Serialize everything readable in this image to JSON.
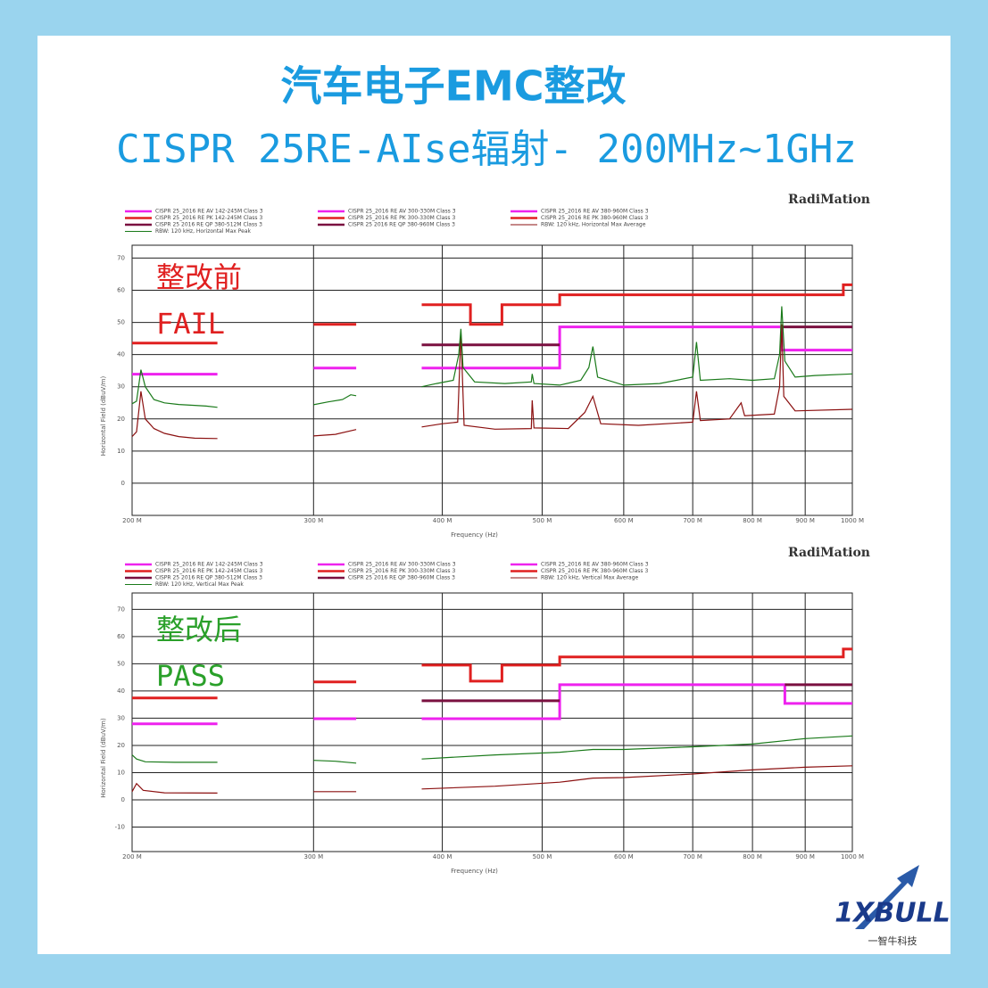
{
  "header": {
    "title": [
      "汽车电子EMC整改",
      "CISPR 25RE-AIse辐射- 200MHz~1GHz"
    ]
  },
  "logo": {
    "brand": "1XBULL",
    "subtitle": "一智牛科技"
  },
  "chart_data": [
    {
      "type": "line",
      "title": "RadiMation",
      "x_label": "Frequency (Hz)",
      "y_label": "Horizontal Field (dBuV/m)",
      "annotations": [
        {
          "text": "整改前",
          "color": "#e02020"
        },
        {
          "text": "FAIL",
          "color": "#e02020"
        }
      ],
      "xscale": "log",
      "xlim": [
        200,
        1000
      ],
      "xticks": [
        {
          "value": 200,
          "label": "200 M"
        },
        {
          "value": 300,
          "label": "300 M"
        },
        {
          "value": 400,
          "label": "400 M"
        },
        {
          "value": 500,
          "label": "500 M"
        },
        {
          "value": 600,
          "label": "600 M"
        },
        {
          "value": 700,
          "label": "700 M"
        },
        {
          "value": 800,
          "label": "800 M"
        },
        {
          "value": 900,
          "label": "900 M"
        },
        {
          "value": 1000,
          "label": "1000 M"
        }
      ],
      "ylim": [
        -10,
        74
      ],
      "yticks": [
        0,
        10,
        20,
        30,
        40,
        50,
        60,
        70
      ],
      "grid": true,
      "legend": "top",
      "series": [
        {
          "name": "CISPR 25_2016 RE AV 142-245M Class 3",
          "color": "#ee22ee",
          "x": [
            200,
            242
          ],
          "values": [
            33.9,
            33.9
          ]
        },
        {
          "name": "CISPR 25_2016 RE AV 300-330M Class 3",
          "color": "#ee22ee",
          "x": [
            300,
            330
          ],
          "values": [
            35.8,
            35.8
          ]
        },
        {
          "name": "CISPR 25_2016 RE AV 380-960M Class 3",
          "color": "#ee22ee",
          "x": [
            382,
            520,
            520,
            854,
            854,
            1000
          ],
          "values": [
            35.8,
            35.8,
            48.6,
            48.6,
            41.4,
            41.4
          ]
        },
        {
          "name": "CISPR 25_2016 RE PK 142-245M Class 3",
          "color": "#e02020",
          "x": [
            200,
            242
          ],
          "values": [
            43.6,
            43.6
          ]
        },
        {
          "name": "CISPR 25_2016 RE PK 300-330M Class 3",
          "color": "#e02020",
          "x": [
            300,
            330
          ],
          "values": [
            49.4,
            49.4
          ]
        },
        {
          "name": "CISPR 25_2016 RE PK 380-960M Class 3",
          "color": "#e02020",
          "x": [
            382,
            426,
            426,
            457,
            457,
            520,
            520,
            980,
            980,
            1000
          ],
          "values": [
            55.5,
            55.5,
            49.4,
            49.4,
            55.5,
            55.5,
            58.6,
            58.6,
            61.7,
            61.7
          ]
        },
        {
          "name": "CISPR 25 2016 RE QP 380-512M Class 3",
          "color": "#7a1040",
          "x": [
            382,
            520
          ],
          "values": [
            43,
            43
          ]
        },
        {
          "name": "CISPR 25 2016 RE QP 380-960M Class 3",
          "color": "#7a1040",
          "x": [
            854,
            1000
          ],
          "values": [
            48.6,
            48.6
          ]
        },
        {
          "name": "RBW: 120 kHz, Horizontal Max Average",
          "color": "#8b1010",
          "x": [
            200,
            202,
            204,
            206,
            210,
            215,
            222,
            230,
            242,
            null,
            300,
            315,
            330,
            null,
            382,
            400,
            414,
            417,
            420,
            450,
            488,
            489,
            491,
            530,
            550,
            560,
            570,
            620,
            700,
            706,
            712,
            760,
            780,
            786,
            840,
            850,
            854,
            858,
            880,
            1000
          ],
          "values": [
            14.5,
            16,
            28.6,
            20,
            17,
            15.5,
            14.5,
            14,
            13.9,
            null,
            14.7,
            15.2,
            16.7,
            null,
            17.5,
            18.5,
            19,
            46.7,
            18,
            16.8,
            17,
            25.8,
            17.2,
            17,
            22,
            27,
            18.5,
            18,
            19,
            28.6,
            19.5,
            20,
            25,
            21,
            21.5,
            30,
            49.4,
            27,
            22.5,
            23
          ]
        },
        {
          "name": "RBW: 120 kHz, Horizontal Max Peak",
          "color": "#1a7a1a",
          "x": [
            200,
            202,
            204,
            206,
            210,
            215,
            222,
            230,
            236,
            242,
            null,
            300,
            310,
            320,
            326,
            330,
            null,
            382,
            395,
            410,
            415,
            417,
            419,
            430,
            460,
            488,
            489,
            491,
            520,
            545,
            555,
            560,
            566,
            600,
            650,
            700,
            706,
            712,
            760,
            800,
            840,
            850,
            854,
            860,
            880,
            920,
            1000
          ],
          "values": [
            24.7,
            25.5,
            35.3,
            30,
            26,
            25,
            24.5,
            24.2,
            24,
            23.6,
            null,
            24.4,
            25.3,
            26,
            27.5,
            27.2,
            null,
            30,
            31,
            32,
            40,
            48,
            36,
            31.5,
            31,
            31.5,
            34,
            31,
            30.5,
            32,
            36,
            42.5,
            33,
            30.5,
            31,
            33,
            43.9,
            32,
            32.5,
            32,
            32.5,
            40,
            55,
            38,
            33,
            33.5,
            34
          ]
        }
      ]
    },
    {
      "type": "line",
      "title": "RadiMation",
      "x_label": "Frequency (Hz)",
      "y_label": "Horizontal Field (dBuV/m)",
      "annotations": [
        {
          "text": "整改后",
          "color": "#2aa02a"
        },
        {
          "text": "PASS",
          "color": "#2aa02a"
        }
      ],
      "xscale": "log",
      "xlim": [
        200,
        1000
      ],
      "xticks": [
        {
          "value": 200,
          "label": "200 M"
        },
        {
          "value": 300,
          "label": "300 M"
        },
        {
          "value": 400,
          "label": "400 M"
        },
        {
          "value": 500,
          "label": "500 M"
        },
        {
          "value": 600,
          "label": "600 M"
        },
        {
          "value": 700,
          "label": "700 M"
        },
        {
          "value": 800,
          "label": "800 M"
        },
        {
          "value": 900,
          "label": "900 M"
        },
        {
          "value": 1000,
          "label": "1000 M"
        }
      ],
      "ylim": [
        -19,
        76
      ],
      "yticks": [
        -10,
        0,
        10,
        20,
        30,
        40,
        50,
        60,
        70
      ],
      "grid": true,
      "legend": "top",
      "series": [
        {
          "name": "CISPR 25_2016 RE AV 142-245M Class 3",
          "color": "#ee22ee",
          "x": [
            200,
            242
          ],
          "values": [
            27.9,
            27.9
          ]
        },
        {
          "name": "CISPR 25_2016 RE AV 300-330M Class 3",
          "color": "#ee22ee",
          "x": [
            300,
            330
          ],
          "values": [
            29.8,
            29.8
          ]
        },
        {
          "name": "CISPR 25_2016 RE AV 380-960M Class 3",
          "color": "#ee22ee",
          "x": [
            382,
            520,
            520,
            860,
            860,
            1000
          ],
          "values": [
            29.8,
            29.8,
            42.3,
            42.3,
            35.4,
            35.4
          ]
        },
        {
          "name": "CISPR 25_2016 RE PK 142-245M Class 3",
          "color": "#e02020",
          "x": [
            200,
            242
          ],
          "values": [
            37.4,
            37.4
          ]
        },
        {
          "name": "CISPR 25_2016 RE PK 300-330M Class 3",
          "color": "#e02020",
          "x": [
            300,
            330
          ],
          "values": [
            43.3,
            43.3
          ]
        },
        {
          "name": "CISPR 25_2016 RE PK 380-960M Class 3",
          "color": "#e02020",
          "x": [
            382,
            426,
            426,
            457,
            457,
            520,
            520,
            980,
            980,
            1000
          ],
          "values": [
            49.5,
            49.5,
            43.6,
            43.6,
            49.5,
            49.5,
            52.5,
            52.5,
            55.4,
            55.4
          ]
        },
        {
          "name": "CISPR 25 2016 RE QP 380-512M Class 3",
          "color": "#7a1040",
          "x": [
            382,
            520
          ],
          "values": [
            36.4,
            36.4
          ]
        },
        {
          "name": "CISPR 25 2016 RE QP 380-960M Class 3",
          "color": "#7a1040",
          "x": [
            860,
            1000
          ],
          "values": [
            42.3,
            42.3
          ]
        },
        {
          "name": "RBW: 120 kHz, Vertical Max Average",
          "color": "#8b1010",
          "x": [
            200,
            202,
            205,
            215,
            242,
            null,
            300,
            330,
            null,
            382,
            450,
            520,
            560,
            600,
            700,
            800,
            900,
            1000
          ],
          "values": [
            3,
            6,
            3.5,
            2.6,
            2.5,
            null,
            3,
            3,
            null,
            4,
            5,
            6.5,
            8,
            8.2,
            9.5,
            11,
            12,
            12.5
          ]
        },
        {
          "name": "RBW: 120 kHz, Vertical Max Peak",
          "color": "#1a7a1a",
          "x": [
            200,
            202,
            206,
            220,
            242,
            null,
            300,
            315,
            330,
            null,
            382,
            450,
            520,
            560,
            600,
            700,
            800,
            900,
            1000
          ],
          "values": [
            16.5,
            15,
            14,
            13.8,
            13.8,
            null,
            14.5,
            14.2,
            13.5,
            null,
            15,
            16.5,
            17.5,
            18.5,
            18.5,
            19.5,
            20.5,
            22.5,
            23.5
          ]
        }
      ]
    }
  ]
}
